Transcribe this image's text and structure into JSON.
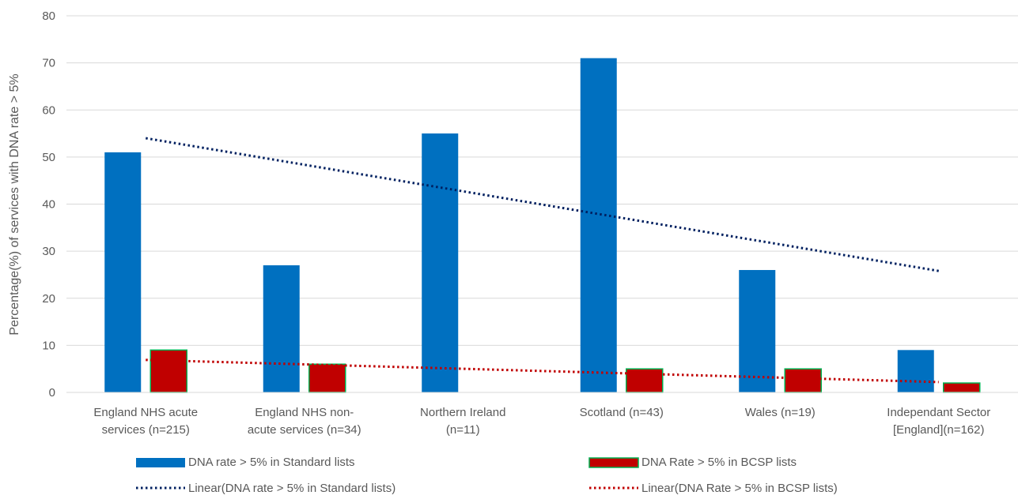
{
  "chart_data": {
    "type": "bar",
    "title": "",
    "xlabel": "",
    "ylabel": "Percentage(%) of services with DNA rate > 5%",
    "ylim": [
      0,
      80
    ],
    "yticks": [
      0,
      10,
      20,
      30,
      40,
      50,
      60,
      70,
      80
    ],
    "grid": true,
    "legend_position": "bottom",
    "categories": [
      [
        "England NHS acute",
        "services (n=215)"
      ],
      [
        "England NHS non-",
        "acute services (n=34)"
      ],
      [
        "Northern Ireland",
        "(n=11)"
      ],
      [
        "Scotland (n=43)"
      ],
      [
        "Wales (n=19)"
      ],
      [
        "Independant Sector",
        "[England](n=162)"
      ]
    ],
    "series": [
      {
        "name": "DNA rate > 5% in Standard lists",
        "values": [
          51,
          27,
          55,
          71,
          26,
          9
        ],
        "color": "#0070C0"
      },
      {
        "name": "DNA Rate > 5% in BCSP lists",
        "values": [
          9,
          6,
          null,
          5,
          5,
          2
        ],
        "color": "#C00000",
        "border": "#00B050"
      }
    ],
    "trendlines": [
      {
        "name": "Linear(DNA rate > 5% in Standard lists)",
        "of_series": 0,
        "start": 54,
        "end": 25.8,
        "color": "#002060"
      },
      {
        "name": "Linear(DNA Rate > 5% in BCSP lists)",
        "of_series": 1,
        "start": 6.9,
        "end": 2.2,
        "color": "#C00000"
      }
    ]
  }
}
